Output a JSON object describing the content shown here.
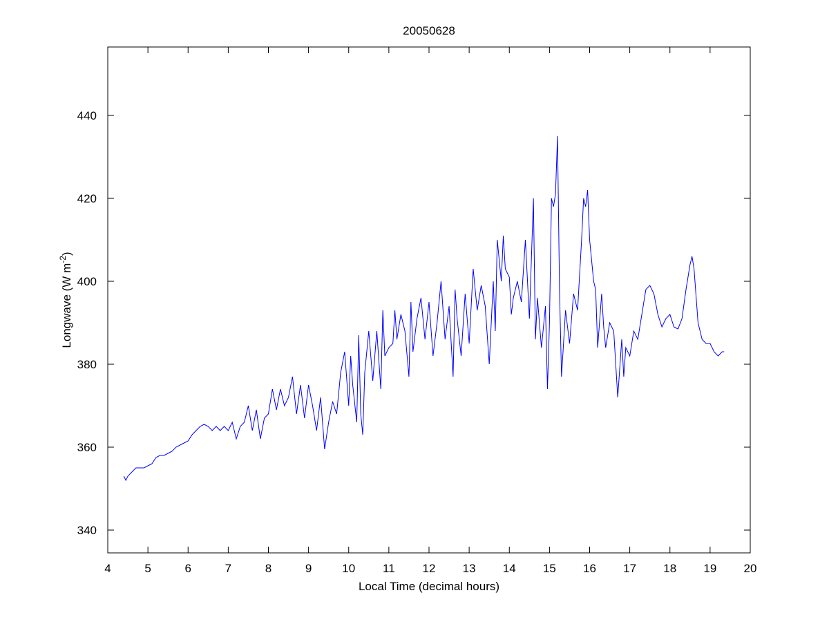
{
  "chart_data": {
    "type": "line",
    "title": "20050628",
    "xlabel": "Local Time (decimal hours)",
    "ylabel": "Longwave (W m",
    "ylabel_superscript": "-2",
    "ylabel_suffix": ")",
    "xlim": [
      4,
      20
    ],
    "ylim": [
      334.5,
      456.5
    ],
    "xticks": [
      4,
      5,
      6,
      7,
      8,
      9,
      10,
      11,
      12,
      13,
      14,
      15,
      16,
      17,
      18,
      19,
      20
    ],
    "yticks": [
      340,
      360,
      380,
      400,
      420,
      440
    ],
    "grid": false,
    "x": [
      4.4,
      4.45,
      4.5,
      4.6,
      4.7,
      4.8,
      4.9,
      5.0,
      5.1,
      5.2,
      5.3,
      5.4,
      5.5,
      5.6,
      5.7,
      5.8,
      5.9,
      6.0,
      6.1,
      6.2,
      6.3,
      6.4,
      6.5,
      6.6,
      6.7,
      6.8,
      6.9,
      7.0,
      7.1,
      7.2,
      7.3,
      7.4,
      7.5,
      7.6,
      7.7,
      7.8,
      7.9,
      8.0,
      8.1,
      8.2,
      8.3,
      8.4,
      8.5,
      8.6,
      8.7,
      8.8,
      8.9,
      9.0,
      9.1,
      9.2,
      9.3,
      9.4,
      9.5,
      9.6,
      9.7,
      9.8,
      9.9,
      10.0,
      10.05,
      10.1,
      10.2,
      10.25,
      10.3,
      10.35,
      10.4,
      10.5,
      10.6,
      10.7,
      10.8,
      10.85,
      10.9,
      11.0,
      11.1,
      11.15,
      11.2,
      11.3,
      11.4,
      11.5,
      11.55,
      11.6,
      11.7,
      11.8,
      11.9,
      12.0,
      12.1,
      12.2,
      12.3,
      12.4,
      12.5,
      12.6,
      12.65,
      12.7,
      12.8,
      12.9,
      13.0,
      13.1,
      13.2,
      13.3,
      13.4,
      13.5,
      13.6,
      13.65,
      13.7,
      13.8,
      13.85,
      13.9,
      14.0,
      14.05,
      14.1,
      14.2,
      14.3,
      14.4,
      14.5,
      14.6,
      14.65,
      14.7,
      14.8,
      14.9,
      14.95,
      15.0,
      15.05,
      15.1,
      15.15,
      15.2,
      15.25,
      15.3,
      15.4,
      15.5,
      15.6,
      15.7,
      15.8,
      15.85,
      15.9,
      15.95,
      16.0,
      16.1,
      16.15,
      16.2,
      16.3,
      16.35,
      16.4,
      16.5,
      16.6,
      16.7,
      16.8,
      16.85,
      16.9,
      17.0,
      17.1,
      17.2,
      17.3,
      17.4,
      17.5,
      17.6,
      17.7,
      17.8,
      17.9,
      18.0,
      18.1,
      18.2,
      18.3,
      18.4,
      18.5,
      18.55,
      18.6,
      18.7,
      18.8,
      18.9,
      19.0,
      19.1,
      19.2,
      19.3,
      19.35
    ],
    "series": [
      {
        "color": "#0000ff",
        "values": [
          353,
          352,
          353,
          354,
          355,
          355,
          355,
          355.5,
          356,
          357.5,
          358,
          358,
          358.5,
          359,
          360,
          360.5,
          361,
          361.5,
          363,
          364,
          365,
          365.5,
          365,
          364,
          365,
          364,
          365,
          364,
          366,
          362,
          365,
          366,
          370,
          364,
          369,
          362,
          367,
          368,
          374,
          369,
          374,
          370,
          372,
          377,
          368,
          375,
          367,
          375,
          370,
          364,
          372,
          359.5,
          366,
          371,
          368,
          378,
          383,
          370,
          382,
          375,
          366,
          387,
          368,
          363,
          378,
          388,
          376,
          388,
          374,
          393,
          382,
          384,
          385,
          393,
          386,
          392,
          388,
          377,
          395,
          383,
          391,
          396,
          386,
          395,
          382,
          390,
          400,
          386,
          394,
          377,
          398,
          391,
          382,
          397,
          385,
          403,
          393,
          399,
          394,
          380,
          400,
          388,
          410,
          400,
          411,
          403,
          401,
          392,
          396,
          400,
          395,
          410,
          391,
          420,
          386,
          396,
          384,
          394,
          374,
          390,
          420,
          418,
          421,
          435,
          398,
          377,
          393,
          385,
          397,
          393,
          410,
          420,
          418,
          422,
          410,
          400,
          398,
          384,
          397,
          389,
          384,
          390,
          388,
          372,
          386,
          377,
          384,
          382,
          388,
          386,
          392,
          398,
          399,
          397,
          392,
          389,
          391,
          392,
          389,
          388.5,
          391,
          398,
          404,
          406,
          403,
          390,
          386,
          385,
          385,
          383,
          382,
          383,
          383
        ]
      }
    ]
  }
}
